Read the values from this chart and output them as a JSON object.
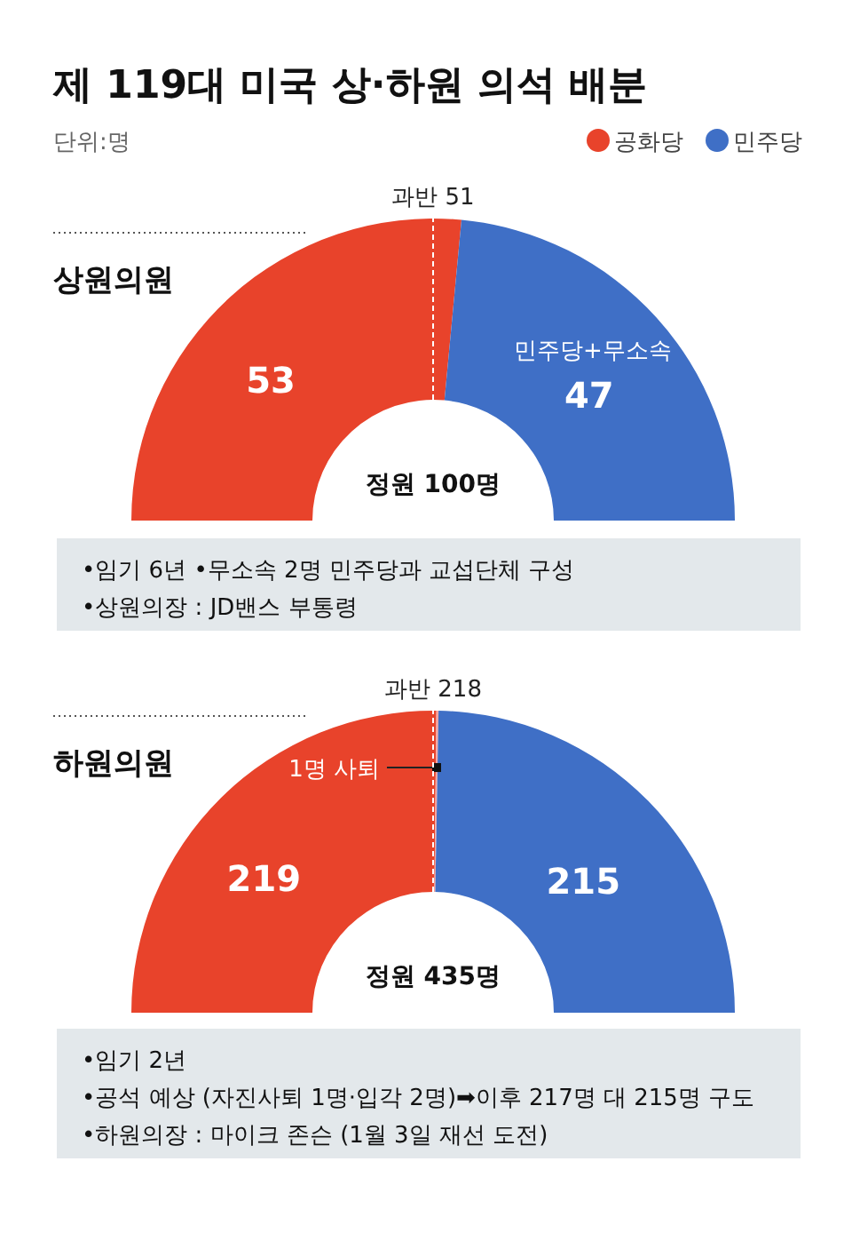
{
  "chart_data": [
    {
      "type": "donut",
      "title": "제 119대 미국 상·하원 의석 배분",
      "subtitle": "단위:명",
      "categories": [
        "공화당",
        "민주당"
      ],
      "values": [
        53,
        47
      ],
      "colors": [
        "#e8432b",
        "#3f6fc6"
      ],
      "data_labels": true,
      "legend": "top right",
      "annotations": [
        "상원의원",
        "과반 51",
        {
          "text": "민주당+무소속",
          "x": "민주당"
        },
        "정원 100명",
        "•임기 6년 •무소속 2명 민주당과 교섭단체 구성",
        "•상원의장 : JD밴스 부통령"
      ]
    },
    {
      "type": "donut",
      "categories": [
        null,
        "1명 사퇴",
        null
      ],
      "values": [
        219,
        1,
        215
      ],
      "colors": [
        "#e8432b",
        "#f4a3a0",
        "#3f6fc6"
      ],
      "value_labels": [
        "219",
        null,
        "215"
      ],
      "annotations": [
        "하원의원",
        "과반 218",
        "정원 435명",
        "•임기 2년",
        "•공석 예상 (자진사퇴 1명·입각 2명)➡이후 217명 대 215명 구도",
        "•하원의장 : 마이크 존슨 (1월 3일 재선 도전)"
      ]
    }
  ]
}
